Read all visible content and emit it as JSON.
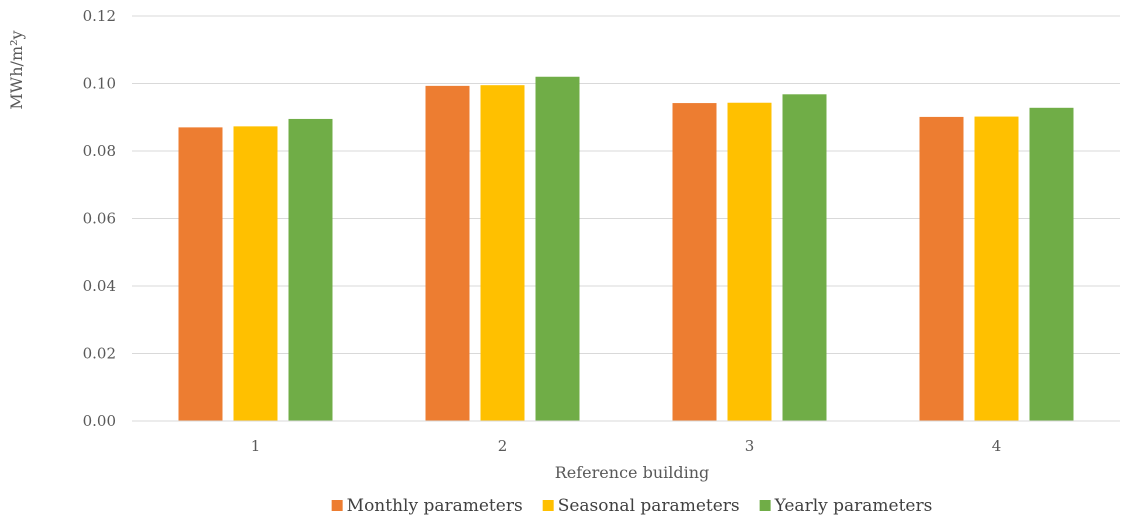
{
  "chart_data": {
    "type": "bar",
    "title": "",
    "xlabel": "Reference building",
    "ylabel": "MWh/m²y",
    "categories": [
      "1",
      "2",
      "3",
      "4"
    ],
    "ylim": [
      0,
      0.12
    ],
    "yticks": [
      "0.00",
      "0.02",
      "0.04",
      "0.06",
      "0.08",
      "0.10",
      "0.12"
    ],
    "grid": true,
    "legend_position": "bottom",
    "series": [
      {
        "name": "Monthly parameters",
        "color": "#ED7D31",
        "values": [
          0.087,
          0.0993,
          0.0942,
          0.0901
        ]
      },
      {
        "name": "Seasonal parameters",
        "color": "#FFC000",
        "values": [
          0.0873,
          0.0995,
          0.0943,
          0.0902
        ]
      },
      {
        "name": "Yearly parameters",
        "color": "#70AD47",
        "values": [
          0.0895,
          0.102,
          0.0968,
          0.0928
        ]
      }
    ]
  }
}
